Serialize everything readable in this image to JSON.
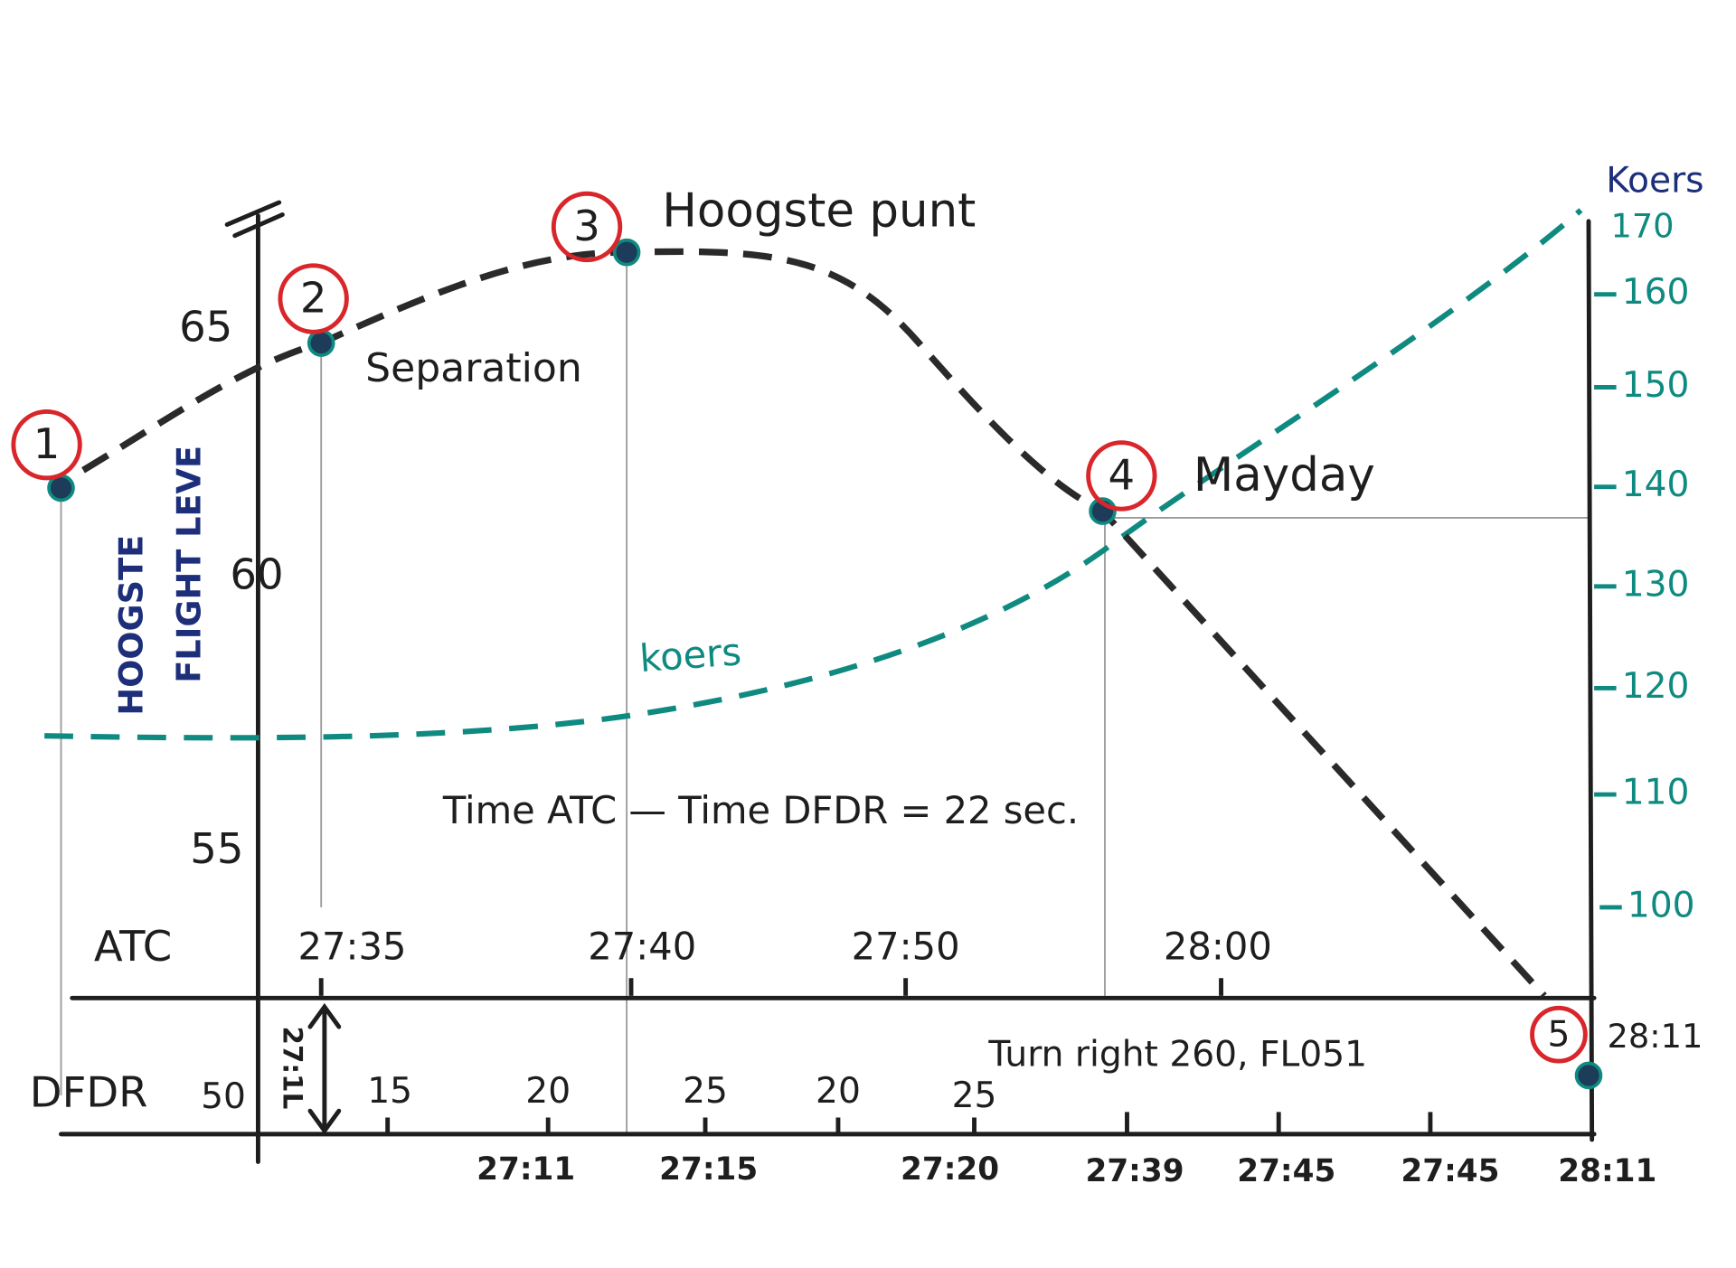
{
  "left_axis": {
    "ticks": [
      "65",
      "60",
      "55",
      "50"
    ],
    "label": [
      "HOOGSTE",
      "FLIGHT LEVE"
    ]
  },
  "right_axis": {
    "title": "Koers",
    "ticks": [
      "170",
      "160",
      "150",
      "140",
      "130",
      "120",
      "110",
      "100"
    ]
  },
  "atc_axis": {
    "label": "ATC",
    "ticks": [
      "27:35",
      "27:40",
      "27:50",
      "28:00",
      "28:11"
    ]
  },
  "dfdr_axis": {
    "label": "DFDR",
    "marker": "27:1L",
    "upper_ticks": [
      "15",
      "20",
      "25",
      "20",
      "25"
    ],
    "lower_ticks": [
      "27:11",
      "27:15",
      "27:20",
      "27:39",
      "27:45",
      "27:45",
      "28:11"
    ]
  },
  "points": [
    {
      "number": "1"
    },
    {
      "number": "2",
      "label": "Separation"
    },
    {
      "number": "3",
      "label": "Hoogste punt"
    },
    {
      "number": "4",
      "label": "Mayday"
    },
    {
      "number": "5"
    }
  ],
  "curve_label": "koers",
  "note": "Time ATC — Time DFDR = 22 sec.",
  "event": "Turn right 260, FL051"
}
